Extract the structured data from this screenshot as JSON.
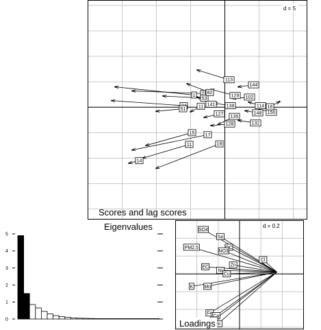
{
  "chart_data": [
    {
      "type": "scatter",
      "title": "Scores and lag scores",
      "grid_scale": "d = 5",
      "grid": true,
      "xlim": [
        -20,
        12
      ],
      "ylim": [
        -22,
        21
      ],
      "points": [
        {
          "label": "113",
          "x": 0.6,
          "y": 5.4,
          "lx": -4.0,
          "ly": 7.3
        },
        {
          "label": "144",
          "x": 4.2,
          "y": 4.4,
          "lx": 2.0,
          "ly": 4.0
        },
        {
          "label": "2",
          "x": -3.2,
          "y": 2.7,
          "lx": -13.5,
          "ly": 3.2
        },
        {
          "label": "1",
          "x": -4.5,
          "y": 2.4,
          "lx": -16.0,
          "ly": 4.0
        },
        {
          "label": "53",
          "x": -3.0,
          "y": 1.8,
          "lx": -9.0,
          "ly": 2.2
        },
        {
          "label": "82",
          "x": -2.2,
          "y": 2.9,
          "lx": -5.5,
          "ly": 4.6
        },
        {
          "label": "24",
          "x": -6.0,
          "y": 0.3,
          "lx": -16.5,
          "ly": 1.3
        },
        {
          "label": "51",
          "x": -6.1,
          "y": -0.3,
          "lx": -10.0,
          "ly": -0.8
        },
        {
          "label": "129",
          "x": 1.5,
          "y": 2.3,
          "lx": -2.0,
          "ly": 3.5
        },
        {
          "label": "102",
          "x": 3.6,
          "y": 2.0,
          "lx": 1.2,
          "ly": 1.7
        },
        {
          "label": "141",
          "x": -2.0,
          "y": 0.6,
          "lx": -4.0,
          "ly": 2.0
        },
        {
          "label": "11",
          "x": -3.5,
          "y": 0.2,
          "lx": -5.0,
          "ly": -0.9
        },
        {
          "label": "138",
          "x": 0.8,
          "y": 0.3,
          "lx": -1.5,
          "ly": 0.8
        },
        {
          "label": "114",
          "x": 5.2,
          "y": 0.3,
          "lx": 3.5,
          "ly": 1.0
        },
        {
          "label": "127",
          "x": -0.8,
          "y": -1.3,
          "lx": -3.0,
          "ly": -2.0
        },
        {
          "label": "135",
          "x": 1.4,
          "y": -1.8,
          "lx": -1.0,
          "ly": -3.4
        },
        {
          "label": "148",
          "x": 4.8,
          "y": -1.1,
          "lx": 3.0,
          "ly": -0.7
        },
        {
          "label": "150",
          "x": 6.8,
          "y": -1.0,
          "lx": 5.0,
          "ly": -0.4
        },
        {
          "label": "16",
          "x": 6.6,
          "y": 0.1,
          "lx": 8.0,
          "ly": 1.1
        },
        {
          "label": "128",
          "x": 0.7,
          "y": -3.3,
          "lx": -2.0,
          "ly": -3.6
        },
        {
          "label": "132",
          "x": 4.5,
          "y": -3.1,
          "lx": 2.0,
          "ly": -2.6
        },
        {
          "label": "17",
          "x": -2.5,
          "y": -5.4,
          "lx": -13.5,
          "ly": -8.4
        },
        {
          "label": "15",
          "x": -4.8,
          "y": -5.0,
          "lx": -11.5,
          "ly": -7.5
        },
        {
          "label": "11",
          "x": -5.2,
          "y": -7.3,
          "lx": -12.0,
          "ly": -10.0
        },
        {
          "label": "19",
          "x": -0.8,
          "y": -7.2,
          "lx": -10.0,
          "ly": -12.0
        },
        {
          "label": "14",
          "x": -12.5,
          "y": -10.5,
          "lx": -14.0,
          "ly": -11.0
        }
      ]
    },
    {
      "type": "bar",
      "title": "Eigenvalues",
      "y_ticks": [
        "0",
        "1",
        "2",
        "3",
        "4",
        "5"
      ],
      "ylim": [
        0,
        5.4
      ],
      "values": [
        4.9,
        1.5,
        0.85,
        0.65,
        0.45,
        0.3,
        0.2,
        0.14,
        0.1,
        0.07,
        0.05,
        0.04,
        0.03,
        0.025,
        0.02,
        0.015,
        0.01,
        0.01,
        0.008,
        0.006,
        0.005,
        0.004,
        0.003,
        0.003
      ],
      "highlighted": 2,
      "colors": {
        "highlight": "#000000",
        "other": "#ffffff"
      }
    },
    {
      "type": "scatter",
      "title": "Loadings",
      "grid_scale": "d = 0.2",
      "grid": true,
      "xlim": [
        -0.6,
        0.6
      ],
      "ylim": [
        -0.62,
        0.6
      ],
      "variables": [
        {
          "label": "SO4",
          "x": -0.34,
          "y": 0.5
        },
        {
          "label": "Se",
          "x": -0.18,
          "y": 0.42
        },
        {
          "label": "PM2.5",
          "x": -0.45,
          "y": 0.3
        },
        {
          "label": "OC",
          "x": -0.1,
          "y": 0.3
        },
        {
          "label": "NO3",
          "x": -0.15,
          "y": 0.26
        },
        {
          "label": "Cl",
          "x": 0.22,
          "y": 0.16
        },
        {
          "label": "EC",
          "x": -0.32,
          "y": 0.08
        },
        {
          "label": "Zn",
          "x": -0.06,
          "y": 0.1
        },
        {
          "label": "Ni",
          "x": -0.18,
          "y": 0.04
        },
        {
          "label": "Cu",
          "x": -0.12,
          "y": 0.0
        },
        {
          "label": "K",
          "x": -0.45,
          "y": -0.14
        },
        {
          "label": "Mn",
          "x": -0.3,
          "y": -0.14
        },
        {
          "label": "Fe",
          "x": -0.28,
          "y": -0.44
        },
        {
          "label": "Ca",
          "x": -0.22,
          "y": -0.47
        },
        {
          "label": "Ti",
          "x": -0.24,
          "y": -0.52
        },
        {
          "label": "Si",
          "x": -0.2,
          "y": -0.56
        }
      ]
    }
  ]
}
